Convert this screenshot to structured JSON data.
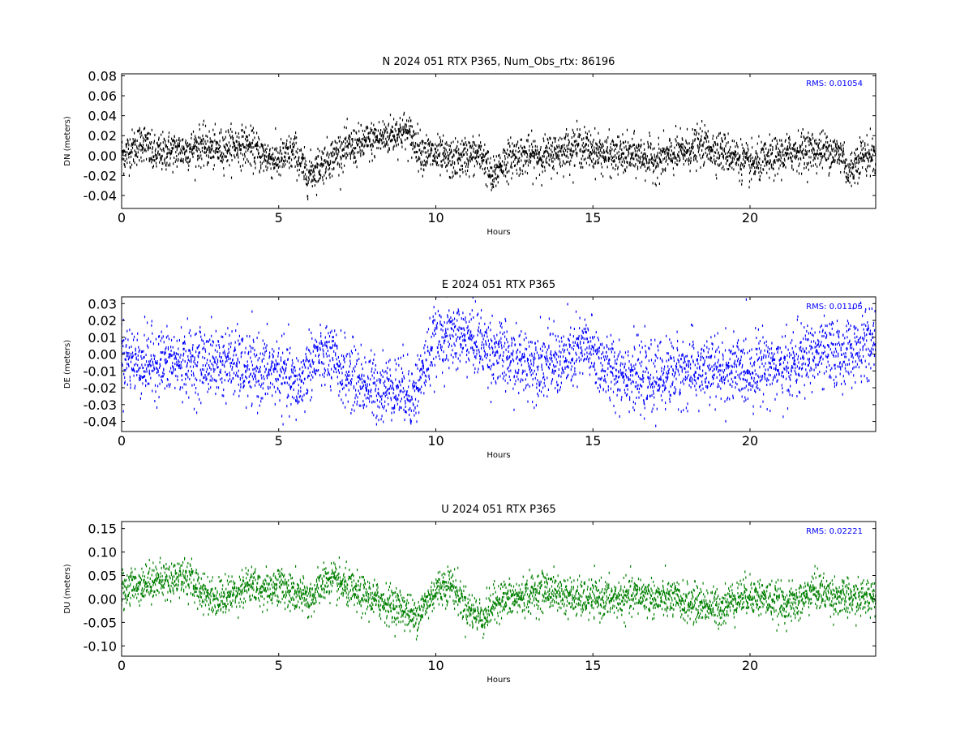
{
  "chart_data": [
    {
      "type": "scatter",
      "title": "N 2024 051 RTX  P365, Num_Obs_rtx: 86196",
      "xlabel": "Hours",
      "ylabel": "DN (meters)",
      "xlim": [
        0,
        24
      ],
      "ylim": [
        -0.053,
        0.082
      ],
      "xticks": [
        "0",
        "5",
        "10",
        "15",
        "20"
      ],
      "yticks": [
        "0.08",
        "0.06",
        "0.04",
        "0.02",
        "0.00",
        "-0.02",
        "-0.04"
      ],
      "rms_label": "RMS:  0.01054",
      "color": "#000000",
      "series": [
        {
          "x": [
            0,
            0.5,
            0.7,
            1,
            1.5,
            2,
            2.5,
            3,
            3.5,
            4,
            4.5,
            5,
            5.5,
            5.9,
            6.5,
            7,
            7.5,
            8,
            8.5,
            9,
            9.2,
            9.5,
            10,
            10.5,
            11,
            11.5,
            11.8,
            12,
            12.5,
            13,
            13.5,
            14,
            14.5,
            15,
            15.5,
            16,
            16.5,
            17,
            17.5,
            18,
            18.5,
            19,
            19.5,
            20,
            20.5,
            21,
            21.5,
            22,
            22.5,
            23,
            23.1,
            23.5,
            24
          ],
          "values": [
            0.0,
            0.01,
            0.015,
            0.0,
            0.005,
            0.005,
            0.01,
            0.005,
            0.01,
            0.01,
            0.0,
            -0.005,
            0.005,
            -0.02,
            -0.005,
            0.005,
            0.01,
            0.015,
            0.02,
            0.025,
            0.02,
            0.005,
            0.0,
            -0.005,
            0.0,
            0.0,
            -0.025,
            -0.01,
            0.0,
            0.0,
            0.0,
            0.005,
            0.01,
            0.005,
            0.0,
            0.0,
            0.0,
            -0.005,
            0.0,
            0.005,
            0.01,
            0.005,
            0.0,
            -0.01,
            -0.005,
            0.0,
            0.005,
            0.005,
            0.005,
            0.0,
            -0.02,
            0.0,
            0.0
          ],
          "spread": 0.01054
        }
      ]
    },
    {
      "type": "scatter",
      "title": "E 2024 051 RTX  P365",
      "xlabel": "Hours",
      "ylabel": "DE (meters)",
      "xlim": [
        0,
        24
      ],
      "ylim": [
        -0.046,
        0.034
      ],
      "xticks": [
        "0",
        "5",
        "10",
        "15",
        "20"
      ],
      "yticks": [
        "0.03",
        "0.02",
        "0.01",
        "0.00",
        "-0.01",
        "-0.02",
        "-0.03",
        "-0.04"
      ],
      "rms_label": "RMS:  0.01105",
      "color": "#0000ff",
      "series": [
        {
          "x": [
            0,
            0.5,
            1,
            1.5,
            2,
            2.5,
            3,
            3.5,
            4,
            4.5,
            5,
            5.3,
            5.6,
            6,
            6.5,
            7,
            7.5,
            8,
            8.5,
            9,
            9.3,
            9.7,
            10,
            10.5,
            11,
            11.5,
            12,
            12.5,
            13,
            13.5,
            14,
            14.5,
            14.8,
            15,
            15.5,
            16,
            16.5,
            17,
            17.5,
            18,
            18.5,
            19,
            19.5,
            20,
            20.5,
            21,
            21.5,
            22,
            22.5,
            23,
            23.5,
            24
          ],
          "values": [
            0.0,
            -0.005,
            -0.005,
            -0.005,
            -0.005,
            -0.005,
            -0.005,
            -0.005,
            -0.01,
            -0.01,
            -0.01,
            -0.015,
            -0.02,
            -0.005,
            0.0,
            -0.01,
            -0.015,
            -0.02,
            -0.02,
            -0.02,
            -0.025,
            -0.005,
            0.01,
            0.01,
            0.01,
            0.005,
            0.0,
            -0.005,
            -0.005,
            -0.005,
            -0.005,
            0.0,
            0.005,
            0.0,
            -0.01,
            -0.01,
            -0.015,
            -0.015,
            -0.01,
            -0.01,
            -0.01,
            -0.01,
            -0.01,
            -0.01,
            -0.005,
            -0.01,
            -0.005,
            0.0,
            0.0,
            0.0,
            0.005,
            0.005
          ],
          "spread": 0.011
        }
      ]
    },
    {
      "type": "scatter",
      "title": "U 2024 051 RTX  P365",
      "xlabel": "Hours",
      "ylabel": "DU (meters)",
      "xlim": [
        0,
        24
      ],
      "ylim": [
        -0.122,
        0.165
      ],
      "xticks": [
        "0",
        "5",
        "10",
        "15",
        "20"
      ],
      "yticks": [
        "0.15",
        "0.10",
        "0.05",
        "0.00",
        "-0.05",
        "-0.10"
      ],
      "rms_label": "RMS:  0.02221",
      "color": "#008000",
      "series": [
        {
          "x": [
            0,
            0.5,
            1,
            1.5,
            2,
            2.5,
            3,
            3.5,
            4,
            4.5,
            5,
            5.5,
            6,
            6.5,
            7,
            7.5,
            8,
            8.5,
            9,
            9.3,
            9.7,
            10,
            10.3,
            10.5,
            11,
            11.5,
            12,
            12.5,
            13,
            13.5,
            14,
            14.5,
            15,
            15.5,
            16,
            16.5,
            17,
            17.5,
            18,
            18.5,
            19,
            19.5,
            20,
            20.5,
            21,
            21.5,
            22,
            22.5,
            23,
            23.5,
            24
          ],
          "values": [
            0.02,
            0.03,
            0.04,
            0.04,
            0.05,
            0.02,
            0.0,
            0.01,
            0.03,
            0.02,
            0.03,
            0.01,
            0.0,
            0.04,
            0.03,
            0.01,
            0.0,
            -0.01,
            -0.02,
            -0.04,
            -0.01,
            0.02,
            0.03,
            0.03,
            -0.02,
            -0.04,
            0.0,
            0.0,
            0.01,
            0.02,
            0.01,
            0.0,
            0.0,
            0.0,
            0.0,
            0.01,
            0.0,
            0.0,
            -0.01,
            -0.01,
            -0.02,
            0.0,
            0.01,
            0.0,
            -0.01,
            -0.01,
            0.02,
            0.01,
            0.0,
            0.0,
            0.01
          ],
          "spread": 0.022
        }
      ]
    }
  ]
}
